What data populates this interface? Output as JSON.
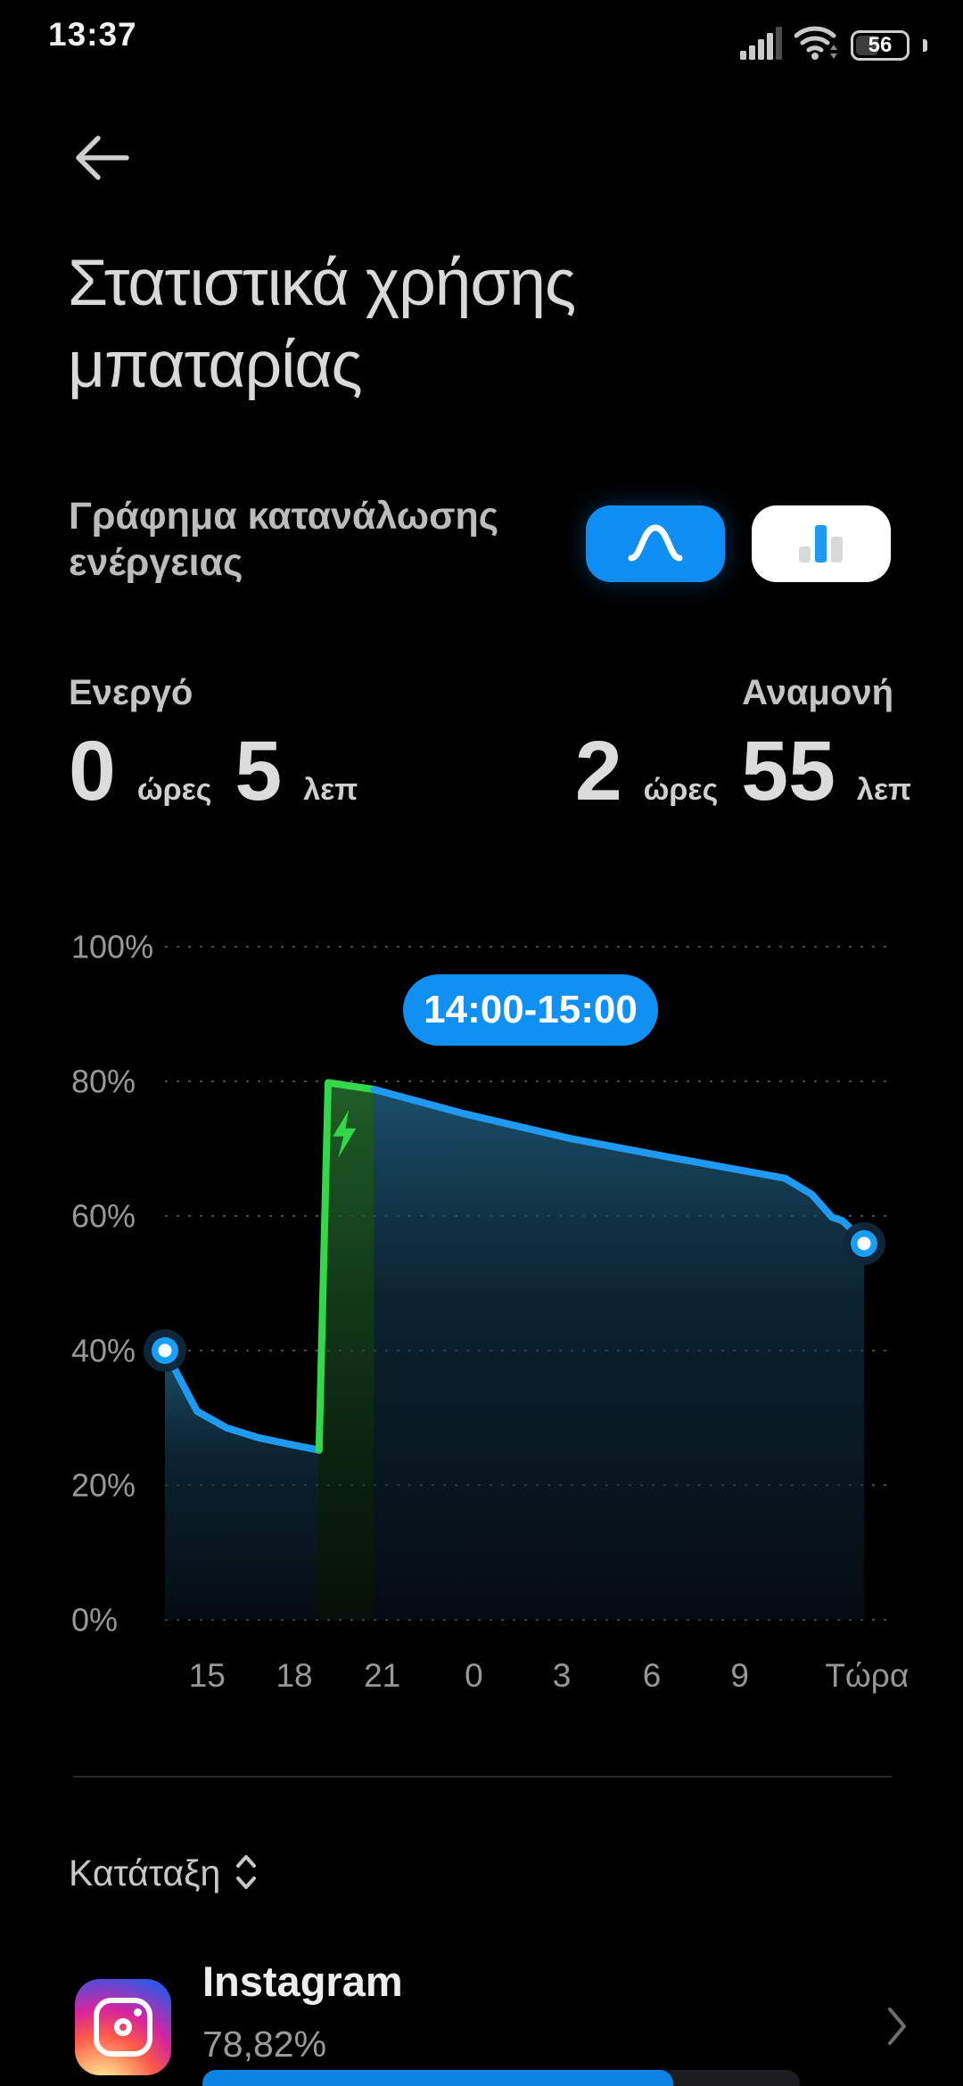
{
  "status_bar": {
    "time": "13:37",
    "battery_level": "56",
    "icons": [
      "signal-bars-icon",
      "wifi-icon",
      "battery-icon"
    ]
  },
  "header": {
    "back_icon": "back-arrow-icon",
    "title": "Στατιστικά χρήσης μπαταρίας"
  },
  "graph_section": {
    "label": "Γράφημα κατανάλωσης ενέργειας",
    "toggles": [
      {
        "name": "line-chart-view",
        "icon": "curve-icon",
        "active": true
      },
      {
        "name": "bar-chart-view",
        "icon": "bars-icon",
        "active": false
      }
    ]
  },
  "usage": {
    "active": {
      "label": "Ενεργό",
      "hours": "0",
      "hours_unit": "ώρες",
      "minutes": "5",
      "minutes_unit": "λεπ"
    },
    "standby": {
      "label": "Αναμονή",
      "hours": "2",
      "hours_unit": "ώρες",
      "minutes": "55",
      "minutes_unit": "λεπ"
    }
  },
  "chart_data": {
    "type": "area",
    "title": "Battery level over last 24h",
    "tooltip": "14:00-15:00",
    "ylim": [
      0,
      100
    ],
    "yticks": [
      0,
      20,
      40,
      60,
      80,
      100
    ],
    "ytick_suffix": "%",
    "grid": "dotted-horizontal",
    "x_labels": [
      {
        "label": "15",
        "f": 0.058
      },
      {
        "label": "18",
        "f": 0.178
      },
      {
        "label": "21",
        "f": 0.299
      },
      {
        "label": "0",
        "f": 0.425
      },
      {
        "label": "3",
        "f": 0.546
      },
      {
        "label": "6",
        "f": 0.67
      },
      {
        "label": "9",
        "f": 0.791
      },
      {
        "label": "Τώρα",
        "f": 0.966
      }
    ],
    "series": [
      {
        "name": "discharge-before-charge",
        "kind": "discharge",
        "points": [
          [
            0.0,
            40
          ],
          [
            0.044,
            31
          ],
          [
            0.085,
            28.5
          ],
          [
            0.13,
            27
          ],
          [
            0.175,
            26
          ],
          [
            0.212,
            25.2
          ]
        ]
      },
      {
        "name": "charging",
        "kind": "charging",
        "points": [
          [
            0.212,
            25.2
          ],
          [
            0.2245,
            79.8
          ],
          [
            0.288,
            78.8
          ]
        ]
      },
      {
        "name": "discharge-after-charge",
        "kind": "discharge",
        "points": [
          [
            0.288,
            78.8
          ],
          [
            0.411,
            75.2
          ],
          [
            0.558,
            71.5
          ],
          [
            0.705,
            68.5
          ],
          [
            0.853,
            65.6
          ],
          [
            0.89,
            63.2
          ],
          [
            0.918,
            59.8
          ],
          [
            0.932,
            59.3
          ],
          [
            0.945,
            58.0
          ],
          [
            0.953,
            58.2
          ],
          [
            0.962,
            55.9
          ]
        ]
      }
    ],
    "endpoints_marked": true
  },
  "ranking": {
    "label": "Κατάταξη",
    "sort_icon": "sort-updown-icon"
  },
  "apps": [
    {
      "name": "Instagram",
      "icon": "instagram-icon",
      "percent": "78,82%",
      "progress": 78.82
    }
  ],
  "colors": {
    "accent_blue": "#1090f2",
    "line_blue": "#1e9af2",
    "charging_green": "#35d74a",
    "tick_gray": "#989898"
  }
}
